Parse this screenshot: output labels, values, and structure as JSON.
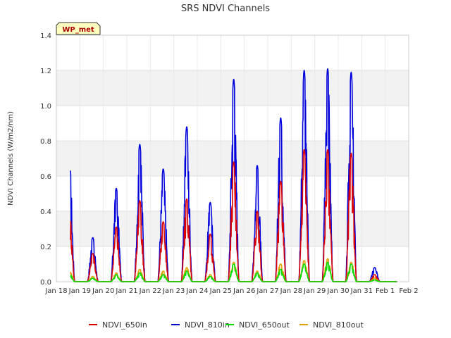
{
  "chart_data": {
    "type": "line",
    "title": "SRS NDVI Channels",
    "xlabel": "",
    "ylabel": "NDVI Channels (W/m2/nm)",
    "ylim": [
      0,
      1.4
    ],
    "yticks": [
      0.0,
      0.2,
      0.4,
      0.6,
      0.8,
      1.0,
      1.2,
      1.4
    ],
    "ytick_labels": [
      "0.0",
      "0.2",
      "0.4",
      "0.6",
      "0.8",
      "1.0",
      "1.2",
      "1.4"
    ],
    "xlim": [
      18,
      33
    ],
    "xticks": [
      18,
      19,
      20,
      21,
      22,
      23,
      24,
      25,
      26,
      27,
      28,
      29,
      30,
      31,
      32,
      33
    ],
    "xtick_labels": [
      "Jan 18",
      "Jan 19",
      "Jan 20",
      "Jan 21",
      "Jan 22",
      "Jan 23",
      "Jan 24",
      "Jan 25",
      "Jan 26",
      "Jan 27",
      "Jan 28",
      "Jan 29",
      "Jan 30",
      "Jan 31",
      "Feb 1",
      "Feb 2"
    ],
    "grid": true,
    "legend_position": "bottom",
    "annotation": "WP_met",
    "daily_peaks": {
      "day": [
        19,
        20,
        21,
        22,
        23,
        24,
        25,
        26,
        27,
        28,
        29,
        30,
        31,
        32
      ],
      "NDVI_810in": [
        0.73,
        0.25,
        0.53,
        0.78,
        0.64,
        0.88,
        0.45,
        1.15,
        0.66,
        0.93,
        1.2,
        1.21,
        1.19,
        0.08
      ],
      "NDVI_650in": [
        0.43,
        0.16,
        0.31,
        0.46,
        0.34,
        0.47,
        0.27,
        0.68,
        0.4,
        0.57,
        0.75,
        0.75,
        0.73,
        0.04
      ],
      "NDVI_650out": [
        0.05,
        0.02,
        0.04,
        0.05,
        0.04,
        0.06,
        0.03,
        0.1,
        0.05,
        0.07,
        0.1,
        0.11,
        0.1,
        0.01
      ],
      "NDVI_810out": [
        0.07,
        0.03,
        0.05,
        0.07,
        0.06,
        0.08,
        0.04,
        0.11,
        0.06,
        0.1,
        0.12,
        0.13,
        0.11,
        0.02
      ]
    },
    "series": [
      {
        "name": "NDVI_650in",
        "color": "#dd0000"
      },
      {
        "name": "NDVI_810in",
        "color": "#0000dd"
      },
      {
        "name": "NDVI_650out",
        "color": "#00dd00"
      },
      {
        "name": "NDVI_810out",
        "color": "#e0a000"
      }
    ]
  }
}
